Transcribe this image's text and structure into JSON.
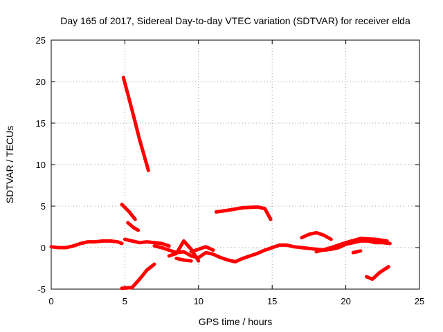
{
  "chart_data": {
    "type": "scatter",
    "title": "Day 165 of 2017, Sidereal Day-to-day VTEC variation (SDTVAR) for receiver elda",
    "xlabel": "GPS time / hours",
    "ylabel": "SDTVAR / TECUs",
    "xlim": [
      0,
      25
    ],
    "ylim": [
      -5,
      25
    ],
    "xticks": [
      "0",
      "5",
      "10",
      "15",
      "20",
      "25"
    ],
    "yticks": [
      "-5",
      "0",
      "5",
      "10",
      "15",
      "20",
      "25"
    ],
    "grid": true,
    "color": "#ff0000",
    "series": [
      {
        "name": "seg1",
        "x": [
          0.0,
          0.5,
          1.0,
          1.5,
          2.0,
          2.5,
          3.0,
          3.5,
          4.0,
          4.5,
          4.8
        ],
        "y": [
          0.1,
          0.0,
          0.0,
          0.2,
          0.5,
          0.7,
          0.7,
          0.8,
          0.8,
          0.7,
          0.5
        ]
      },
      {
        "name": "seg2",
        "x": [
          4.9,
          5.5,
          6.0,
          6.6
        ],
        "y": [
          20.5,
          16.5,
          13.0,
          9.3
        ]
      },
      {
        "name": "seg3",
        "x": [
          4.8,
          5.3,
          5.7
        ],
        "y": [
          5.2,
          4.3,
          3.4
        ]
      },
      {
        "name": "seg4",
        "x": [
          5.2,
          5.6,
          5.9
        ],
        "y": [
          3.0,
          2.4,
          2.1
        ]
      },
      {
        "name": "seg5",
        "x": [
          5.0,
          5.5,
          6.0,
          6.5,
          7.0,
          7.5,
          8.0
        ],
        "y": [
          1.0,
          0.8,
          0.6,
          0.7,
          0.6,
          0.5,
          0.2
        ]
      },
      {
        "name": "seg6",
        "x": [
          4.8,
          5.5,
          6.0,
          6.5,
          7.0
        ],
        "y": [
          -4.9,
          -4.8,
          -3.8,
          -2.7,
          -2.0
        ]
      },
      {
        "name": "seg7",
        "x": [
          7.0,
          7.5,
          8.0,
          8.5,
          9.0,
          9.5,
          10.0,
          10.5,
          11.0,
          11.5,
          12.0,
          12.5,
          13.0,
          13.5,
          14.0,
          14.5,
          15.0,
          15.5,
          16.0,
          16.5,
          17.0,
          17.5,
          18.0,
          18.5,
          19.0,
          19.5,
          20.0,
          20.5,
          21.0,
          21.5,
          22.0,
          22.5,
          23.0
        ],
        "y": [
          0.2,
          0.0,
          -0.3,
          -0.6,
          -0.5,
          -1.0,
          -1.2,
          -0.6,
          -0.8,
          -1.2,
          -1.5,
          -1.7,
          -1.3,
          -1.0,
          -0.7,
          -0.3,
          0.0,
          0.3,
          0.3,
          0.1,
          0.0,
          -0.1,
          -0.2,
          -0.3,
          -0.2,
          0.0,
          0.4,
          0.6,
          0.8,
          0.8,
          0.6,
          0.6,
          0.5
        ]
      },
      {
        "name": "seg8",
        "x": [
          8.0,
          8.5,
          9.0,
          9.5,
          10.0
        ],
        "y": [
          -1.0,
          -0.7,
          0.8,
          -0.2,
          -1.6
        ]
      },
      {
        "name": "seg9",
        "x": [
          8.5,
          9.0,
          9.5
        ],
        "y": [
          -1.3,
          -1.5,
          -1.6
        ]
      },
      {
        "name": "seg10",
        "x": [
          9.5,
          10.0,
          10.5,
          11.0
        ],
        "y": [
          -0.5,
          -0.2,
          0.1,
          -0.3
        ]
      },
      {
        "name": "seg11",
        "x": [
          11.2,
          12.0,
          13.0,
          14.0,
          14.5,
          14.9
        ],
        "y": [
          4.3,
          4.5,
          4.8,
          4.9,
          4.7,
          3.4
        ]
      },
      {
        "name": "seg12",
        "x": [
          17.0,
          17.5,
          18.0,
          18.5,
          19.0
        ],
        "y": [
          1.2,
          1.6,
          1.8,
          1.5,
          1.0
        ]
      },
      {
        "name": "seg13",
        "x": [
          18.0,
          19.0,
          20.0,
          21.0,
          22.0,
          22.8
        ],
        "y": [
          -0.5,
          0.0,
          0.6,
          1.1,
          1.0,
          0.8
        ]
      },
      {
        "name": "seg14",
        "x": [
          20.5,
          21.0
        ],
        "y": [
          -0.6,
          -0.4
        ]
      },
      {
        "name": "seg15",
        "x": [
          21.4,
          21.8,
          22.3,
          22.9
        ],
        "y": [
          -3.5,
          -3.8,
          -3.0,
          -2.3
        ]
      }
    ]
  }
}
